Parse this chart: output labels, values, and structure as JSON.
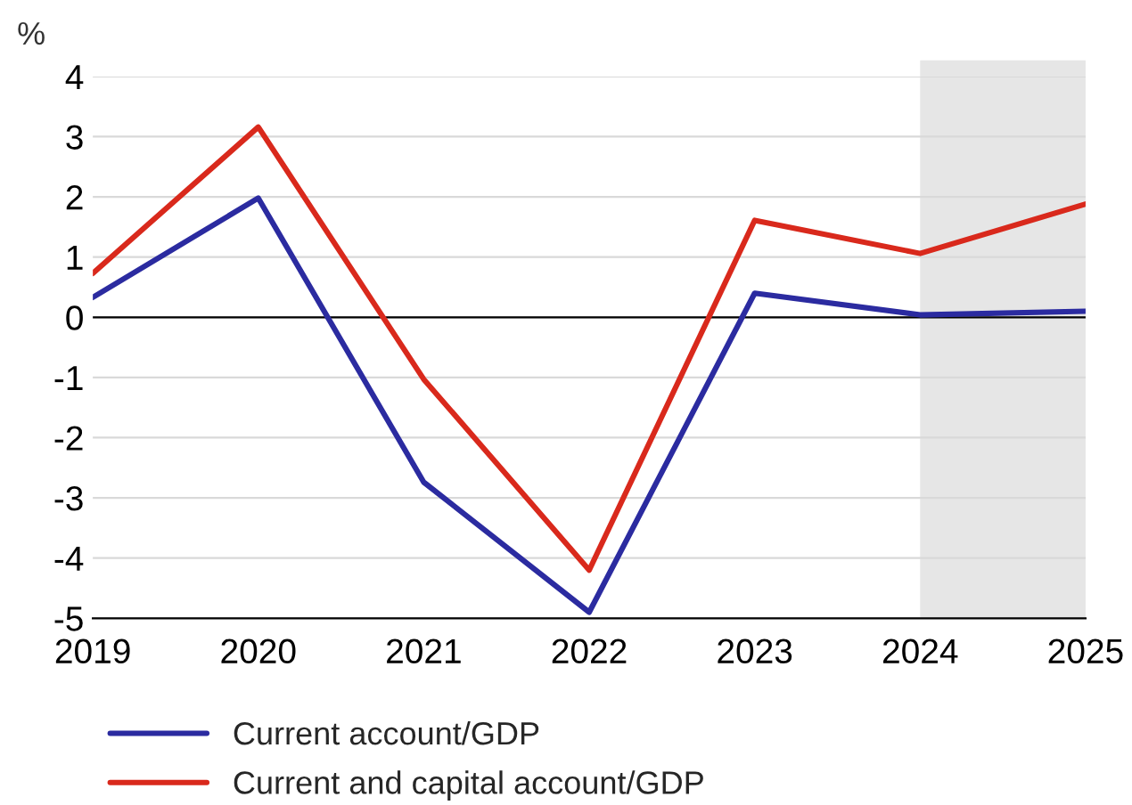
{
  "chart_data": {
    "type": "line",
    "ylabel": "%",
    "x": [
      2019,
      2020,
      2021,
      2022,
      2023,
      2024,
      2025
    ],
    "series": [
      {
        "name": "Current account/GDP",
        "color": "#2b2ba0",
        "values": [
          0.33,
          1.98,
          -2.74,
          -4.9,
          0.4,
          0.04,
          0.1
        ]
      },
      {
        "name": "Current and capital account/GDP",
        "color": "#d9291c",
        "values": [
          0.73,
          3.16,
          -1.03,
          -4.2,
          1.61,
          1.06,
          1.88
        ]
      }
    ],
    "xlim": [
      2019,
      2025
    ],
    "xticks": [
      2019,
      2020,
      2021,
      2022,
      2023,
      2024,
      2025
    ],
    "ylim": [
      -5,
      4
    ],
    "yticks": [
      -5,
      -4,
      -3,
      -2,
      -1,
      0,
      1,
      2,
      3,
      4
    ],
    "ref_lines": [
      {
        "axis": "y",
        "value": 0,
        "color": "#000000"
      }
    ],
    "bands": [
      {
        "axis": "x",
        "from": 2024,
        "to": 2025,
        "color": "#e6e6e6"
      }
    ],
    "grid": "y",
    "legend": "bottom",
    "marker": "none",
    "line_style": "solid"
  }
}
